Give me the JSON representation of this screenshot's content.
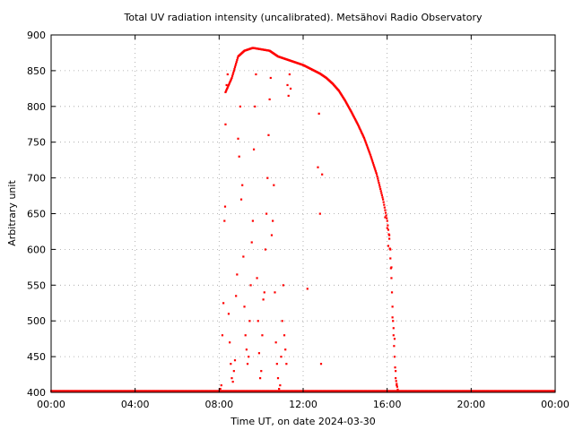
{
  "chart_data": {
    "type": "scatter",
    "title": "Total UV radiation intensity (uncalibrated). Metsähovi Radio Observatory",
    "xlabel": "Time UT, on date 2024-03-30",
    "ylabel": "Arbitrary unit",
    "xlim": [
      0,
      24
    ],
    "ylim": [
      400,
      900
    ],
    "x_ticks": [
      0,
      4,
      8,
      12,
      16,
      20,
      24
    ],
    "x_tick_labels": [
      "00:00",
      "04:00",
      "08:00",
      "12:00",
      "16:00",
      "20:00",
      "00:00"
    ],
    "y_ticks": [
      400,
      450,
      500,
      550,
      600,
      650,
      700,
      750,
      800,
      850,
      900
    ],
    "grid": true,
    "marker_color": "#ff0000",
    "series": [
      {
        "baseline": {
          "x_start": 0,
          "x_end": 24,
          "y": 402
        },
        "envelope": [
          [
            8.3,
            820
          ],
          [
            8.6,
            840
          ],
          [
            8.9,
            870
          ],
          [
            9.2,
            878
          ],
          [
            9.6,
            882
          ],
          [
            10.0,
            880
          ],
          [
            10.4,
            878
          ],
          [
            10.8,
            870
          ],
          [
            11.2,
            866
          ],
          [
            11.6,
            862
          ],
          [
            12.0,
            858
          ],
          [
            12.4,
            852
          ],
          [
            12.8,
            846
          ],
          [
            13.1,
            840
          ],
          [
            13.4,
            832
          ],
          [
            13.7,
            822
          ],
          [
            14.0,
            808
          ],
          [
            14.3,
            792
          ],
          [
            14.6,
            775
          ],
          [
            14.9,
            756
          ],
          [
            15.2,
            732
          ],
          [
            15.5,
            705
          ],
          [
            15.8,
            670
          ],
          [
            16.0,
            640
          ],
          [
            16.1,
            615
          ],
          [
            16.2,
            560
          ],
          [
            16.3,
            480
          ],
          [
            16.4,
            420
          ],
          [
            16.5,
            404
          ]
        ],
        "scatter": [
          [
            8.05,
            405
          ],
          [
            8.1,
            410
          ],
          [
            8.15,
            480
          ],
          [
            8.2,
            525
          ],
          [
            8.25,
            640
          ],
          [
            8.28,
            660
          ],
          [
            8.3,
            775
          ],
          [
            8.35,
            830
          ],
          [
            8.4,
            845
          ],
          [
            8.45,
            510
          ],
          [
            8.5,
            470
          ],
          [
            8.55,
            440
          ],
          [
            8.6,
            420
          ],
          [
            8.65,
            415
          ],
          [
            8.7,
            430
          ],
          [
            8.75,
            445
          ],
          [
            8.8,
            535
          ],
          [
            8.85,
            565
          ],
          [
            8.9,
            755
          ],
          [
            8.95,
            730
          ],
          [
            9.0,
            800
          ],
          [
            9.05,
            670
          ],
          [
            9.1,
            690
          ],
          [
            9.15,
            590
          ],
          [
            9.2,
            520
          ],
          [
            9.25,
            480
          ],
          [
            9.3,
            460
          ],
          [
            9.35,
            440
          ],
          [
            9.4,
            450
          ],
          [
            9.45,
            500
          ],
          [
            9.5,
            550
          ],
          [
            9.55,
            610
          ],
          [
            9.6,
            640
          ],
          [
            9.65,
            740
          ],
          [
            9.7,
            800
          ],
          [
            9.75,
            845
          ],
          [
            9.8,
            560
          ],
          [
            9.85,
            500
          ],
          [
            9.9,
            455
          ],
          [
            9.95,
            420
          ],
          [
            10.0,
            430
          ],
          [
            10.05,
            480
          ],
          [
            10.1,
            530
          ],
          [
            10.15,
            540
          ],
          [
            10.2,
            600
          ],
          [
            10.25,
            650
          ],
          [
            10.3,
            700
          ],
          [
            10.35,
            760
          ],
          [
            10.4,
            810
          ],
          [
            10.45,
            840
          ],
          [
            10.5,
            620
          ],
          [
            10.55,
            640
          ],
          [
            10.6,
            690
          ],
          [
            10.65,
            540
          ],
          [
            10.7,
            470
          ],
          [
            10.75,
            440
          ],
          [
            10.8,
            420
          ],
          [
            10.85,
            405
          ],
          [
            10.9,
            410
          ],
          [
            10.95,
            450
          ],
          [
            11.0,
            500
          ],
          [
            11.05,
            550
          ],
          [
            11.1,
            480
          ],
          [
            11.15,
            460
          ],
          [
            11.2,
            440
          ],
          [
            11.25,
            830
          ],
          [
            11.3,
            815
          ],
          [
            11.35,
            845
          ],
          [
            11.4,
            825
          ],
          [
            12.2,
            545
          ],
          [
            12.7,
            715
          ],
          [
            12.75,
            790
          ],
          [
            12.8,
            650
          ],
          [
            12.85,
            440
          ],
          [
            12.9,
            705
          ],
          [
            15.9,
            645
          ],
          [
            16.0,
            630
          ],
          [
            16.05,
            605
          ],
          [
            16.1,
            620
          ],
          [
            16.15,
            600
          ],
          [
            16.2,
            575
          ],
          [
            16.25,
            505
          ],
          [
            16.3,
            490
          ],
          [
            16.35,
            475
          ],
          [
            16.4,
            430
          ],
          [
            16.45,
            410
          ]
        ]
      }
    ]
  }
}
